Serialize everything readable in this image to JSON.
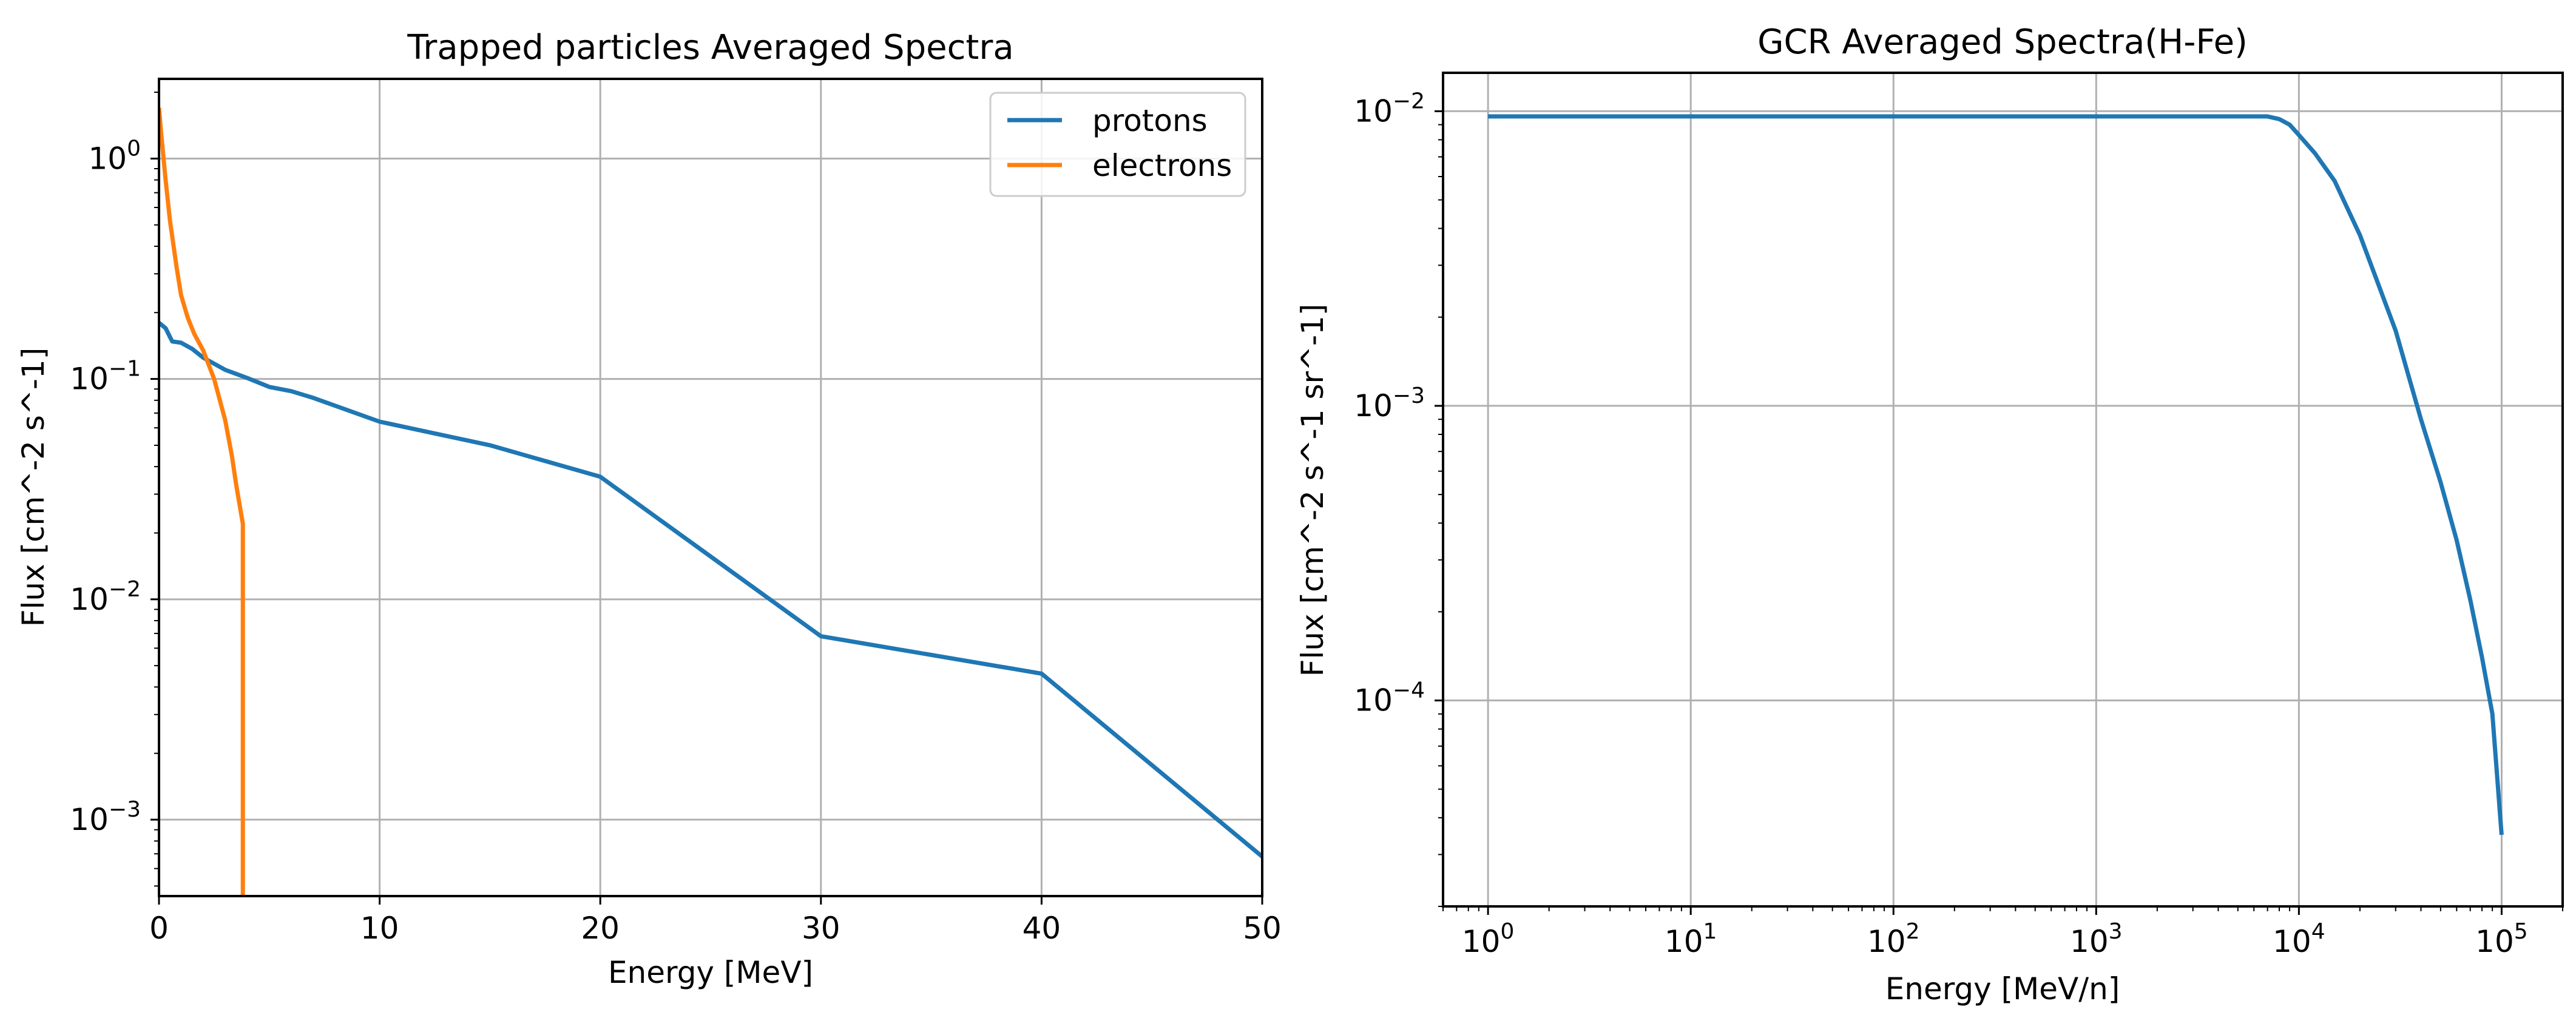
{
  "chart_data": [
    {
      "type": "line",
      "title": "Trapped particles Averaged Spectra",
      "xlabel": "Energy [MeV]",
      "ylabel": "Flux [cm^-2 s^-1]",
      "xscale": "linear",
      "yscale": "log",
      "xlim": [
        0,
        50
      ],
      "ylim": [
        0.00045,
        2.3
      ],
      "xticks": [
        0,
        10,
        20,
        30,
        40,
        50
      ],
      "xtick_labels": [
        "0",
        "10",
        "20",
        "30",
        "40",
        "50"
      ],
      "ytick_exponents": [
        -3,
        -2,
        -1,
        0
      ],
      "grid": true,
      "legend_position": "top-right",
      "series": [
        {
          "name": "protons",
          "color": "#1f77b4",
          "x": [
            0,
            0.3,
            0.6,
            1,
            1.5,
            2,
            3,
            4,
            5,
            6,
            7,
            10,
            15,
            20,
            30,
            40,
            50
          ],
          "y": [
            0.18,
            0.17,
            0.148,
            0.146,
            0.137,
            0.125,
            0.11,
            0.101,
            0.092,
            0.088,
            0.082,
            0.064,
            0.05,
            0.036,
            0.0068,
            0.0046,
            0.00068
          ]
        },
        {
          "name": "electrons",
          "color": "#ff7f0e",
          "x": [
            0,
            0.1,
            0.3,
            0.5,
            0.8,
            1,
            1.3,
            1.6,
            2,
            2.5,
            3,
            3.3,
            3.5,
            3.8,
            3.8
          ],
          "y": [
            1.7,
            1.3,
            0.8,
            0.52,
            0.32,
            0.24,
            0.19,
            0.16,
            0.135,
            0.1,
            0.065,
            0.045,
            0.033,
            0.022,
            0.00045
          ]
        }
      ]
    },
    {
      "type": "line",
      "title": "GCR Averaged Spectra(H-Fe)",
      "xlabel": "Energy [MeV/n]",
      "ylabel": "Flux [cm^-2 s^-1 sr^-1]",
      "xscale": "log",
      "yscale": "log",
      "xlim": [
        0.6,
        200000
      ],
      "ylim": [
        2e-05,
        0.0135
      ],
      "xtick_exponents": [
        0,
        1,
        2,
        3,
        4,
        5
      ],
      "ytick_exponents": [
        -4,
        -3,
        -2
      ],
      "grid": true,
      "series": [
        {
          "name": "GCR",
          "color": "#1f77b4",
          "x": [
            1,
            10,
            100,
            1000,
            5000,
            7000,
            8000,
            9000,
            10000,
            12000,
            15000,
            20000,
            30000,
            40000,
            50000,
            60000,
            70000,
            80000,
            90000,
            100000
          ],
          "y": [
            0.0096,
            0.0096,
            0.0096,
            0.0096,
            0.0096,
            0.0096,
            0.0094,
            0.009,
            0.0083,
            0.0072,
            0.0058,
            0.0038,
            0.0018,
            0.0009,
            0.00055,
            0.00035,
            0.00022,
            0.00014,
            9e-05,
            3.5e-05
          ]
        }
      ]
    }
  ]
}
